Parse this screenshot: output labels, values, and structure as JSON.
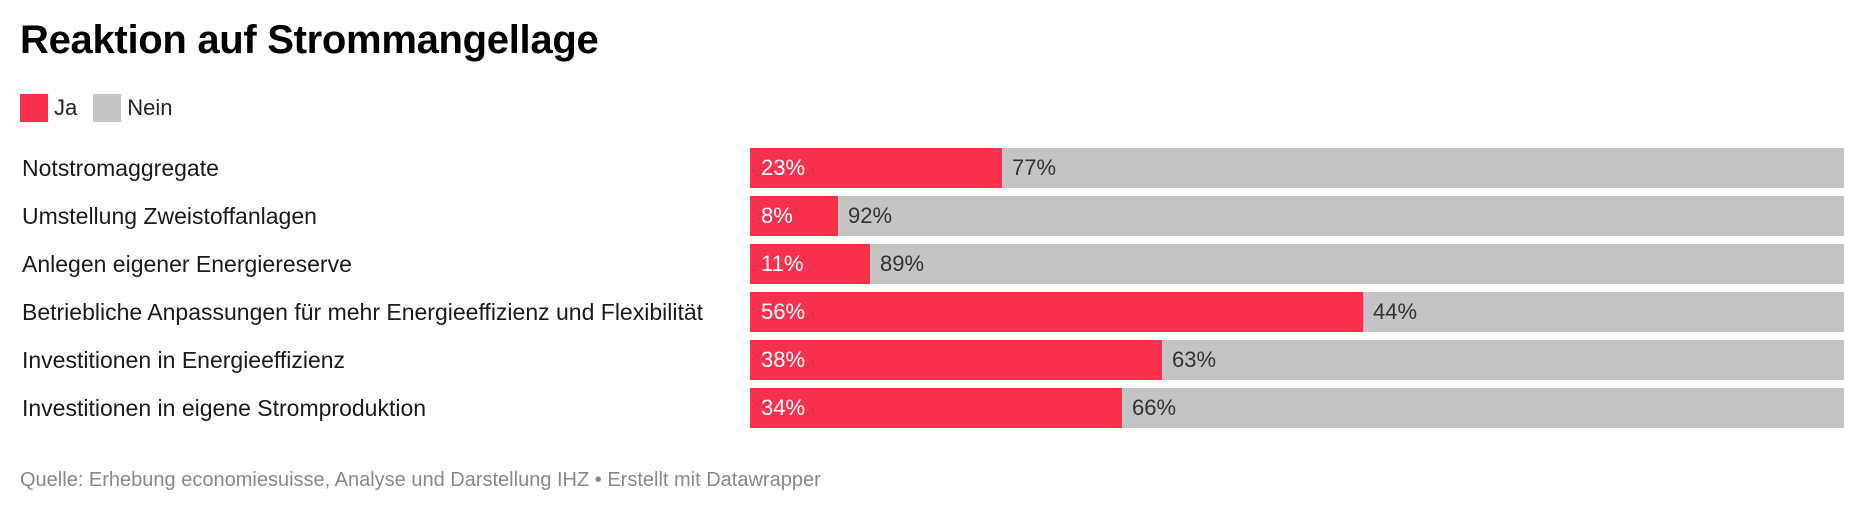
{
  "header": {
    "title": "Reaktion auf Strommangellage"
  },
  "legend": [
    {
      "label": "Ja",
      "color": "#f7314e"
    },
    {
      "label": "Nein",
      "color": "#c4c4c4"
    }
  ],
  "footer": {
    "source": "Quelle: Erhebung economiesuisse, Analyse und Darstellung IHZ • Erstellt mit Datawrapper"
  },
  "chart_data": {
    "type": "bar",
    "orientation": "horizontal",
    "stacked": true,
    "title": "Reaktion auf Strommangellage",
    "categories": [
      "Notstromaggregate",
      "Umstellung Zweistoffanlagen",
      "Anlegen eigener Energiereserve",
      "Betriebliche Anpassungen für mehr Energieeffizienz und Flexibilität",
      "Investitionen in Energieeffizienz",
      "Investitionen in eigene Stromproduktion"
    ],
    "series": [
      {
        "name": "Ja",
        "color": "#f7314e",
        "values": [
          23,
          8,
          11,
          56,
          38,
          34
        ],
        "labels": [
          "23%",
          "8%",
          "11%",
          "56%",
          "38%",
          "34%"
        ]
      },
      {
        "name": "Nein",
        "color": "#c4c4c4",
        "values": [
          77,
          92,
          89,
          44,
          63,
          66
        ],
        "labels": [
          "77%",
          "92%",
          "89%",
          "44%",
          "63%",
          "66%"
        ]
      }
    ],
    "legend_position": "top-left",
    "grid": false
  }
}
